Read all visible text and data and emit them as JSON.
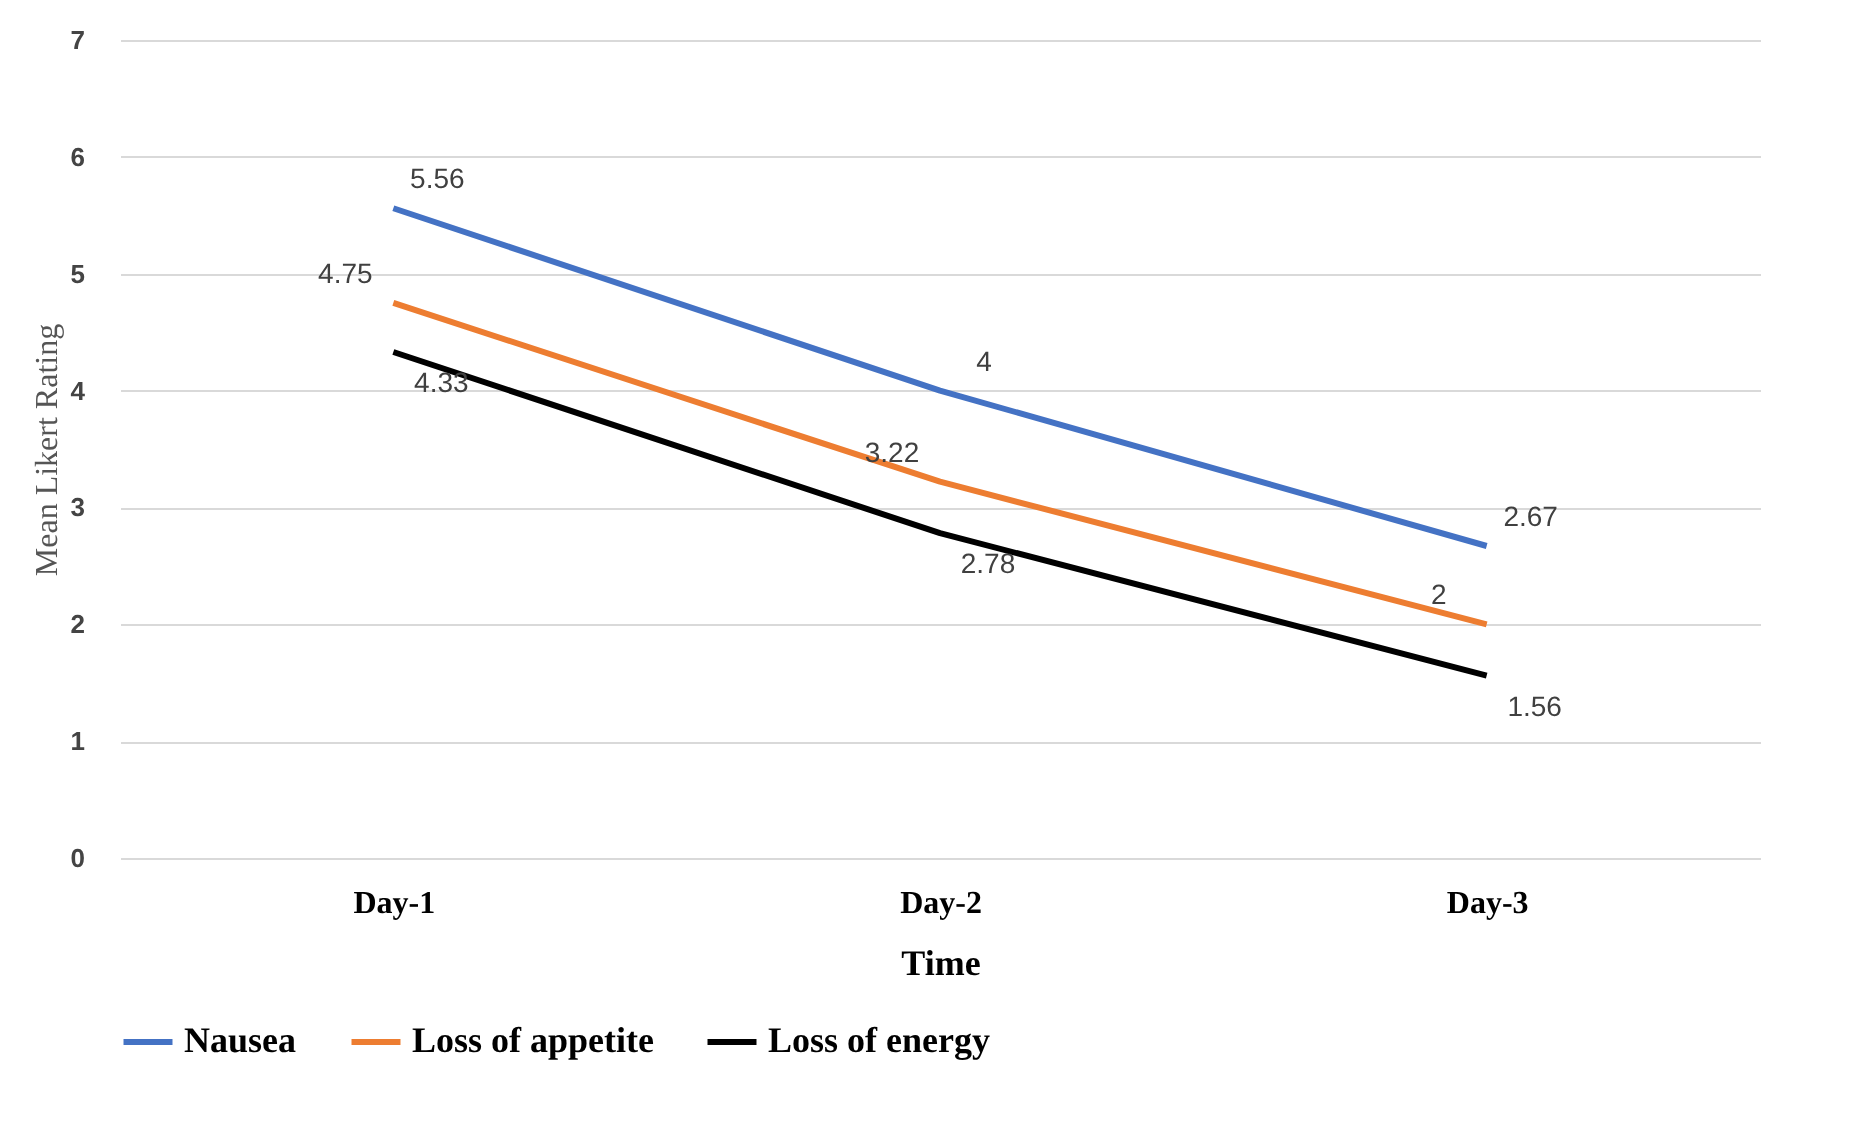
{
  "chart_data": {
    "type": "line",
    "xlabel": "Time",
    "ylabel": "Mean Likert Rating",
    "categories": [
      "Day-1",
      "Day-2",
      "Day-3"
    ],
    "series": [
      {
        "name": "Nausea",
        "color": "#4472c4",
        "values": [
          5.56,
          4,
          2.67
        ]
      },
      {
        "name": "Loss of appetite",
        "color": "#ed7d31",
        "values": [
          4.75,
          3.22,
          2
        ]
      },
      {
        "name": "Loss of energy",
        "color": "#000000",
        "values": [
          4.33,
          2.78,
          1.56
        ]
      }
    ],
    "ylim": [
      0,
      7
    ],
    "yticks": [
      0,
      1,
      2,
      3,
      4,
      5,
      6,
      7
    ],
    "grid": "y",
    "legend": "bottom",
    "data_labels": true,
    "marker": "none",
    "line_style": "solid"
  }
}
